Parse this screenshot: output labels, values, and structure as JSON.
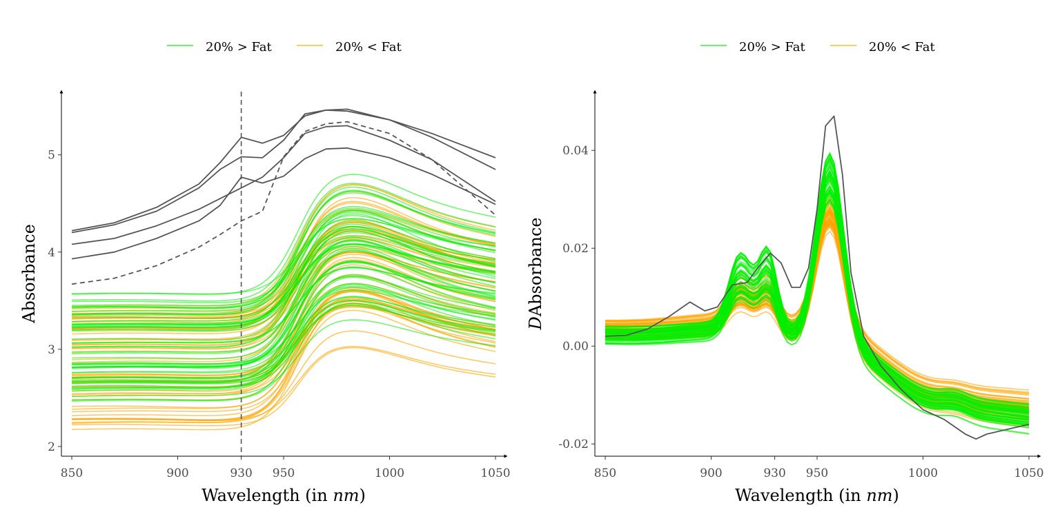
{
  "colors": {
    "low_fat": "#00ee00",
    "high_fat": "#ffa500",
    "highlight": "#555555",
    "axis": "#000000",
    "tick": "#4d4d4d"
  },
  "legend": {
    "low_label": "20% > Fat",
    "high_label": "20% < Fat"
  },
  "chart_data": [
    {
      "type": "line",
      "xlabel": "Wavelength (in nm)",
      "ylabel": "Absorbance",
      "xlim": [
        850,
        1050
      ],
      "ylim": [
        1.9,
        5.65
      ],
      "x_ticks": [
        850,
        900,
        930,
        950,
        1000,
        1050
      ],
      "y_ticks": [
        2,
        3,
        4,
        5
      ],
      "vline_x": 930,
      "n_low_fat": 55,
      "n_high_fat": 60,
      "highlight_series": [
        {
          "name": "",
          "dashed": false,
          "x": [
            850,
            870,
            890,
            910,
            920,
            930,
            940,
            950,
            960,
            970,
            980,
            1000,
            1020,
            1050
          ],
          "y": [
            4.22,
            4.3,
            4.46,
            4.7,
            4.92,
            5.18,
            5.12,
            5.2,
            5.4,
            5.46,
            5.45,
            5.36,
            5.22,
            4.97
          ]
        },
        {
          "name": "",
          "dashed": false,
          "x": [
            850,
            870,
            890,
            910,
            920,
            930,
            940,
            950,
            960,
            970,
            980,
            1000,
            1020,
            1050
          ],
          "y": [
            4.2,
            4.28,
            4.42,
            4.66,
            4.85,
            4.98,
            4.97,
            5.15,
            5.42,
            5.46,
            5.47,
            5.36,
            5.18,
            4.85
          ]
        },
        {
          "name": "",
          "dashed": false,
          "x": [
            850,
            870,
            890,
            910,
            920,
            930,
            940,
            950,
            960,
            970,
            980,
            1000,
            1020,
            1050
          ],
          "y": [
            4.08,
            4.14,
            4.27,
            4.44,
            4.55,
            4.66,
            4.77,
            4.97,
            5.22,
            5.29,
            5.3,
            5.15,
            4.95,
            4.52
          ]
        },
        {
          "name": "",
          "dashed": false,
          "x": [
            850,
            870,
            890,
            910,
            920,
            930,
            940,
            950,
            960,
            970,
            980,
            1000,
            1020,
            1050
          ],
          "y": [
            3.93,
            4.0,
            4.14,
            4.32,
            4.48,
            4.77,
            4.71,
            4.78,
            4.96,
            5.06,
            5.07,
            4.97,
            4.8,
            4.49
          ]
        },
        {
          "name": "",
          "dashed": true,
          "x": [
            850,
            870,
            890,
            910,
            920,
            930,
            940,
            950,
            960,
            970,
            980,
            1000,
            1020,
            1050
          ],
          "y": [
            3.67,
            3.73,
            3.86,
            4.05,
            4.18,
            4.32,
            4.42,
            4.98,
            5.24,
            5.32,
            5.34,
            5.22,
            4.95,
            4.38
          ]
        }
      ]
    },
    {
      "type": "line",
      "xlabel": "Wavelength (in nm)",
      "ylabel": "D Absorbance",
      "xlim": [
        850,
        1050
      ],
      "ylim": [
        -0.0225,
        0.052
      ],
      "x_ticks": [
        850,
        900,
        930,
        950,
        1000,
        1050
      ],
      "y_ticks": [
        -0.02,
        0.0,
        0.02,
        0.04
      ],
      "y_tick_labels": [
        "-0.02",
        "0.00",
        "0.02",
        "0.04"
      ],
      "highlight_series": [
        {
          "name": "",
          "dashed": false,
          "x": [
            850,
            860,
            870,
            880,
            890,
            897,
            903,
            910,
            917,
            922,
            928,
            933,
            938,
            942,
            946,
            950,
            954,
            958,
            962,
            966,
            972,
            980,
            990,
            1000,
            1010,
            1020,
            1025,
            1030,
            1040,
            1050
          ],
          "y": [
            0.002,
            0.0022,
            0.0035,
            0.006,
            0.009,
            0.0072,
            0.008,
            0.0125,
            0.013,
            0.016,
            0.019,
            0.017,
            0.012,
            0.012,
            0.016,
            0.028,
            0.045,
            0.047,
            0.035,
            0.015,
            0.002,
            -0.004,
            -0.009,
            -0.013,
            -0.015,
            -0.018,
            -0.019,
            -0.018,
            -0.017,
            -0.016
          ]
        }
      ]
    }
  ]
}
